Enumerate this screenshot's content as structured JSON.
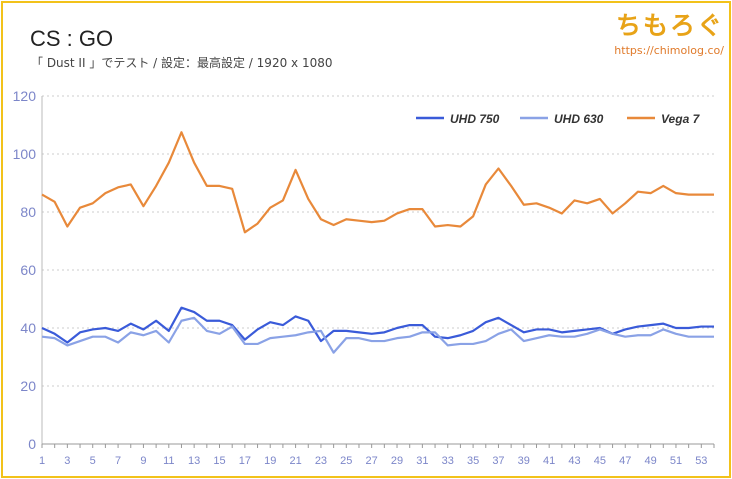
{
  "header": {
    "title": "CS : GO",
    "subtitle": "「 Dust II 」でテスト  /  設定：最高設定  / 1920 x 1080",
    "brand_name": "ちもろぐ",
    "brand_url": "https://chimolog.co/"
  },
  "colors": {
    "frame": "#f2c21a",
    "uhd750": "#3a5bd9",
    "uhd630": "#8aa2e6",
    "vega7": "#e8893a",
    "axis_text": "#7c86c9",
    "grid": "#cccccc"
  },
  "chart_data": {
    "type": "line",
    "x": [
      1,
      2,
      3,
      4,
      5,
      6,
      7,
      8,
      9,
      10,
      11,
      12,
      13,
      14,
      15,
      16,
      17,
      18,
      19,
      20,
      21,
      22,
      23,
      24,
      25,
      26,
      27,
      28,
      29,
      30,
      31,
      32,
      33,
      34,
      35,
      36,
      37,
      38,
      39,
      40,
      41,
      42,
      43,
      44,
      45,
      46,
      47,
      48,
      49,
      50,
      51,
      52,
      53,
      54
    ],
    "x_tick_labels": [
      "1",
      "3",
      "5",
      "7",
      "9",
      "11",
      "13",
      "15",
      "17",
      "19",
      "21",
      "23",
      "25",
      "27",
      "29",
      "31",
      "33",
      "35",
      "37",
      "39",
      "41",
      "43",
      "45",
      "47",
      "49",
      "51",
      "53"
    ],
    "x_tick_values": [
      1,
      3,
      5,
      7,
      9,
      11,
      13,
      15,
      17,
      19,
      21,
      23,
      25,
      27,
      29,
      31,
      33,
      35,
      37,
      39,
      41,
      43,
      45,
      47,
      49,
      51,
      53
    ],
    "ylim": [
      0,
      120
    ],
    "y_ticks": [
      0,
      20,
      40,
      60,
      80,
      100,
      120
    ],
    "grid": "horizontal dotted",
    "legend_position": "top-right",
    "series": [
      {
        "name": "UHD 750",
        "color": "#3a5bd9",
        "values": [
          40,
          38,
          35,
          38.5,
          39.5,
          40,
          39,
          41.5,
          39.5,
          42.5,
          39,
          47,
          45.5,
          42.5,
          42.5,
          41,
          36,
          39.5,
          42,
          41,
          44,
          42.5,
          35.5,
          39,
          39,
          38.5,
          38,
          38.5,
          40,
          41,
          41,
          37,
          36.5,
          37.5,
          39,
          42,
          43.5,
          41,
          38.5,
          39.5,
          39.5,
          38.5,
          39,
          39.5,
          40,
          38,
          39.5,
          40.5,
          41,
          41.5,
          40,
          40,
          40.5,
          40.5
        ]
      },
      {
        "name": "UHD 630",
        "color": "#8aa2e6",
        "values": [
          37,
          36.5,
          34,
          35.5,
          37,
          37,
          35,
          38.5,
          37.5,
          39,
          35,
          42.5,
          43.5,
          39,
          38,
          40.5,
          34.5,
          34.5,
          36.5,
          37,
          37.5,
          38.5,
          39,
          31.5,
          36.5,
          36.5,
          35.5,
          35.5,
          36.5,
          37,
          38.5,
          38.5,
          34,
          34.5,
          34.5,
          35.5,
          38,
          39.5,
          35.5,
          36.5,
          37.5,
          37,
          37,
          38,
          39.5,
          38,
          37,
          37.5,
          37.5,
          39.5,
          38,
          37,
          37,
          37
        ]
      },
      {
        "name": "Vega 7",
        "color": "#e8893a",
        "values": [
          86,
          83.5,
          75,
          81.5,
          83,
          86.5,
          88.5,
          89.5,
          82,
          89,
          97,
          107.5,
          97,
          89,
          89,
          88,
          73,
          76,
          81.5,
          84,
          94.5,
          84.5,
          77.5,
          75.5,
          77.5,
          77,
          76.5,
          77,
          79.5,
          81,
          81,
          75,
          75.5,
          75,
          78.5,
          89.5,
          95,
          89,
          82.5,
          83,
          81.5,
          79.5,
          84,
          83,
          84.5,
          79.5,
          83,
          87,
          86.5,
          89,
          86.5,
          86,
          86,
          86
        ]
      }
    ]
  }
}
